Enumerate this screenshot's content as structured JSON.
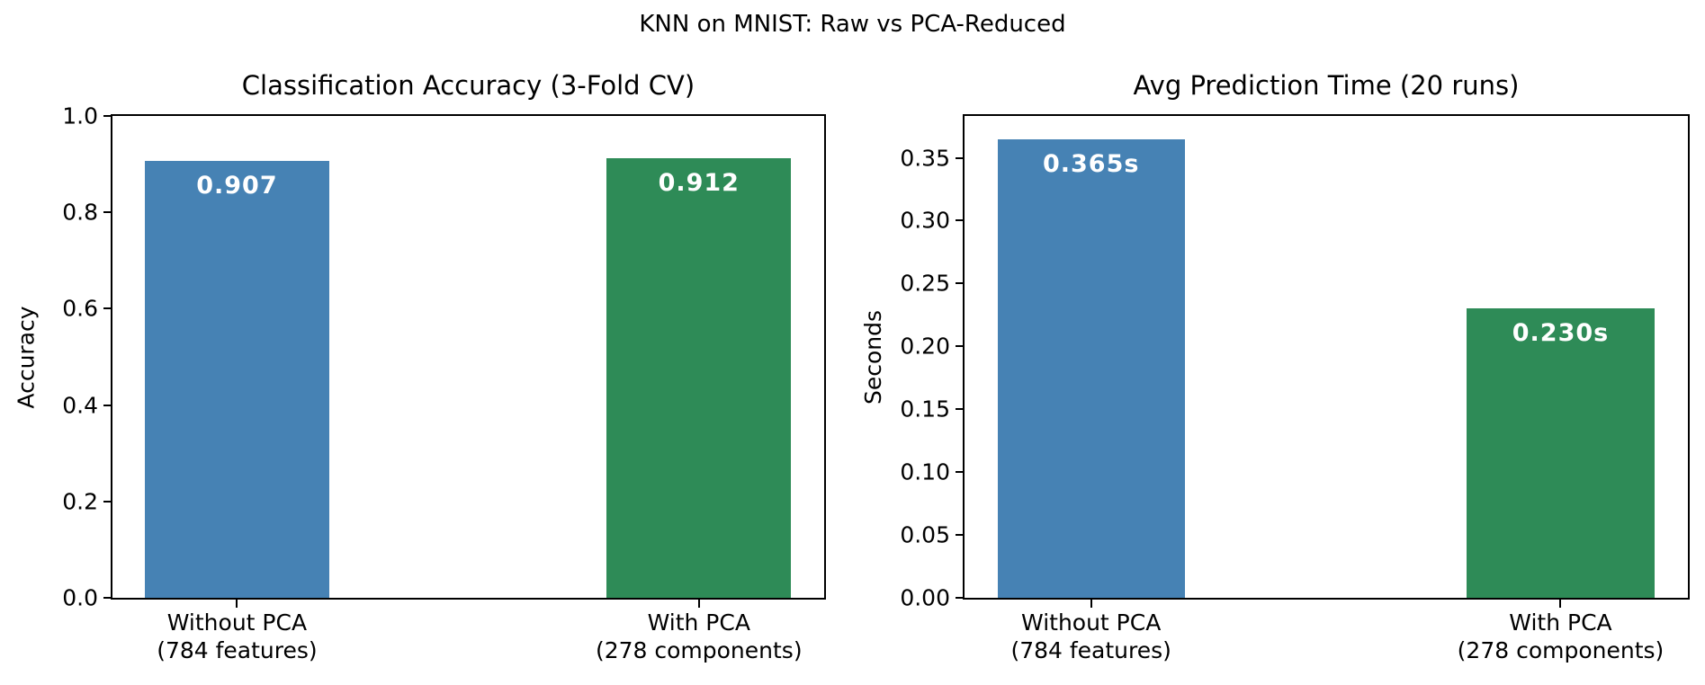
{
  "figure_title": "KNN on MNIST: Raw vs PCA-Reduced",
  "colors": {
    "without_pca_bar": "#4682B4",
    "with_pca_bar": "#2E8B57",
    "bar_label_text": "#FFFFFF",
    "axis_line": "#000000",
    "text": "#000000",
    "background": "#FFFFFF"
  },
  "chart_data": [
    {
      "id": "accuracy",
      "type": "bar",
      "title": "Classification Accuracy (3-Fold CV)",
      "xlabel": "",
      "ylabel": "Accuracy",
      "categories": [
        [
          "Without PCA",
          "(784 features)"
        ],
        [
          "With PCA",
          "(278 components)"
        ]
      ],
      "values": [
        0.907,
        0.912
      ],
      "bar_value_labels": [
        "0.907",
        "0.912"
      ],
      "bar_colors": [
        "#4682B4",
        "#2E8B57"
      ],
      "ylim": [
        0,
        1.0
      ],
      "ytick_values": [
        0.0,
        0.2,
        0.4,
        0.6,
        0.8,
        1.0
      ],
      "ytick_labels": [
        "0.0",
        "0.2",
        "0.4",
        "0.6",
        "0.8",
        "1.0"
      ],
      "grid": false,
      "legend": "none"
    },
    {
      "id": "time",
      "type": "bar",
      "title": "Avg Prediction Time (20 runs)",
      "xlabel": "",
      "ylabel": "Seconds",
      "categories": [
        [
          "Without PCA",
          "(784 features)"
        ],
        [
          "With PCA",
          "(278 components)"
        ]
      ],
      "values": [
        0.365,
        0.23
      ],
      "bar_value_labels": [
        "0.365s",
        "0.230s"
      ],
      "bar_colors": [
        "#4682B4",
        "#2E8B57"
      ],
      "ylim": [
        0,
        0.3833
      ],
      "ytick_values": [
        0.0,
        0.05,
        0.1,
        0.15,
        0.2,
        0.25,
        0.3,
        0.35
      ],
      "ytick_labels": [
        "0.00",
        "0.05",
        "0.10",
        "0.15",
        "0.20",
        "0.25",
        "0.30",
        "0.35"
      ],
      "grid": false,
      "legend": "none"
    }
  ]
}
